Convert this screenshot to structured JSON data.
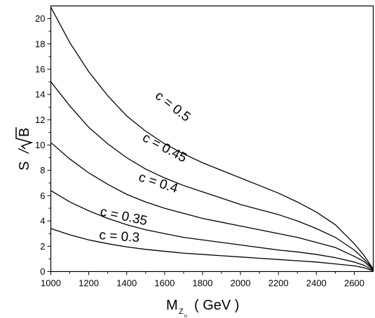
{
  "chart_data": {
    "type": "line",
    "title": "",
    "xlabel": {
      "main": "M",
      "sub1": "Z",
      "sub2": "u",
      "unit": "( GeV )"
    },
    "ylabel": {
      "s": "S",
      "slash": "/",
      "b": "B"
    },
    "xlim": [
      1000,
      2700
    ],
    "ylim": [
      0,
      21
    ],
    "x_ticks": [
      1000,
      1200,
      1400,
      1600,
      1800,
      2000,
      2200,
      2400,
      2600
    ],
    "y_ticks": [
      0,
      2,
      4,
      6,
      8,
      10,
      12,
      14,
      16,
      18,
      20
    ],
    "grid": false,
    "series": [
      {
        "name": "c = 0.5",
        "x": [
          1000,
          1100,
          1200,
          1300,
          1400,
          1500,
          1600,
          1700,
          1800,
          1900,
          2000,
          2100,
          2200,
          2300,
          2400,
          2500,
          2600,
          2650,
          2700
        ],
        "y": [
          20.9,
          18.1,
          15.8,
          13.9,
          12.3,
          11.1,
          10.1,
          9.3,
          8.6,
          8.0,
          7.4,
          6.8,
          6.2,
          5.5,
          4.7,
          3.7,
          2.2,
          1.3,
          0.2
        ]
      },
      {
        "name": "c = 0.45",
        "x": [
          1000,
          1100,
          1200,
          1300,
          1400,
          1500,
          1600,
          1700,
          1800,
          1900,
          2000,
          2100,
          2200,
          2300,
          2400,
          2500,
          2600,
          2650,
          2700
        ],
        "y": [
          15.0,
          13.1,
          11.4,
          10.1,
          9.0,
          8.1,
          7.4,
          6.8,
          6.3,
          5.8,
          5.3,
          4.9,
          4.5,
          4.0,
          3.4,
          2.7,
          1.7,
          1.0,
          0.2
        ]
      },
      {
        "name": "c = 0.4",
        "x": [
          1000,
          1100,
          1200,
          1300,
          1400,
          1500,
          1600,
          1700,
          1800,
          1900,
          2000,
          2100,
          2200,
          2300,
          2400,
          2500,
          2600,
          2650,
          2700
        ],
        "y": [
          10.2,
          8.9,
          7.8,
          6.9,
          6.1,
          5.5,
          5.0,
          4.6,
          4.2,
          3.9,
          3.6,
          3.3,
          3.0,
          2.7,
          2.3,
          1.9,
          1.2,
          0.8,
          0.15
        ]
      },
      {
        "name": "c = 0.35",
        "x": [
          1000,
          1100,
          1200,
          1300,
          1400,
          1500,
          1600,
          1700,
          1800,
          1900,
          2000,
          2100,
          2200,
          2300,
          2400,
          2500,
          2600,
          2650,
          2700
        ],
        "y": [
          6.4,
          5.5,
          4.8,
          4.2,
          3.7,
          3.3,
          3.0,
          2.7,
          2.5,
          2.3,
          2.1,
          1.9,
          1.7,
          1.55,
          1.35,
          1.1,
          0.75,
          0.5,
          0.1
        ]
      },
      {
        "name": "c = 0.3",
        "x": [
          1000,
          1100,
          1200,
          1300,
          1400,
          1500,
          1600,
          1700,
          1800,
          1900,
          2000,
          2100,
          2200,
          2300,
          2400,
          2500,
          2600,
          2650,
          2700
        ],
        "y": [
          3.4,
          2.9,
          2.5,
          2.2,
          1.95,
          1.75,
          1.6,
          1.45,
          1.35,
          1.25,
          1.15,
          1.05,
          0.95,
          0.85,
          0.75,
          0.6,
          0.45,
          0.3,
          0.05
        ]
      }
    ]
  }
}
